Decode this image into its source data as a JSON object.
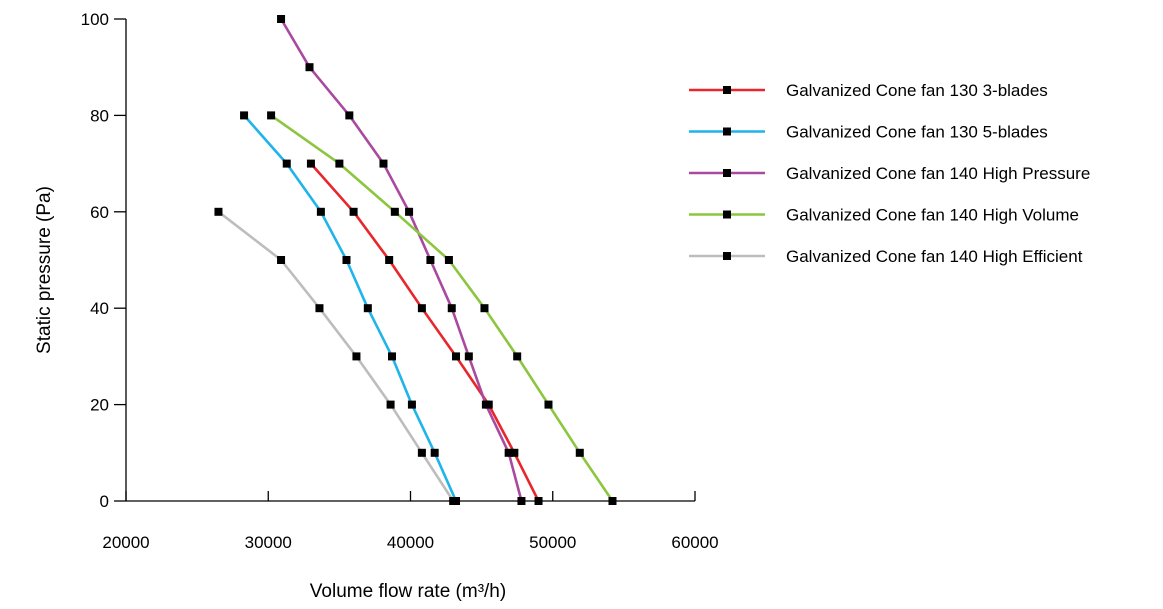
{
  "chart_data": {
    "type": "line",
    "xlabel": "Volume flow rate (m³/h)",
    "ylabel": "Static pressure (Pa)",
    "xlim": [
      20000,
      60000
    ],
    "ylim": [
      0,
      100
    ],
    "x_ticks": [
      20000,
      30000,
      40000,
      50000,
      60000
    ],
    "y_ticks": [
      0,
      20,
      40,
      60,
      80,
      100
    ],
    "grid": false,
    "legend_position": "right",
    "series": [
      {
        "name": "Galvanized Cone fan 130 3-blades",
        "color": "#e8262c",
        "points": [
          [
            33000,
            70
          ],
          [
            36000,
            60
          ],
          [
            38500,
            50
          ],
          [
            40800,
            40
          ],
          [
            43200,
            30
          ],
          [
            45500,
            20
          ],
          [
            47300,
            10
          ],
          [
            49000,
            0
          ]
        ]
      },
      {
        "name": "Galvanized Cone fan 130 5-blades",
        "color": "#1fb4ea",
        "points": [
          [
            28300,
            80
          ],
          [
            31300,
            70
          ],
          [
            33700,
            60
          ],
          [
            35500,
            50
          ],
          [
            37000,
            40
          ],
          [
            38700,
            30
          ],
          [
            40100,
            20
          ],
          [
            41700,
            10
          ],
          [
            43200,
            0
          ]
        ]
      },
      {
        "name": "Galvanized Cone fan 140 High Pressure",
        "color": "#a94aa0",
        "points": [
          [
            30900,
            100
          ],
          [
            32900,
            90
          ],
          [
            35700,
            80
          ],
          [
            38100,
            70
          ],
          [
            39900,
            60
          ],
          [
            41400,
            50
          ],
          [
            42900,
            40
          ],
          [
            44100,
            30
          ],
          [
            45300,
            20
          ],
          [
            46900,
            10
          ],
          [
            47800,
            0
          ]
        ]
      },
      {
        "name": "Galvanized Cone fan 140 High Volume",
        "color": "#8cc63f",
        "points": [
          [
            30200,
            80
          ],
          [
            35000,
            70
          ],
          [
            38900,
            60
          ],
          [
            42700,
            50
          ],
          [
            45200,
            40
          ],
          [
            47500,
            30
          ],
          [
            49700,
            20
          ],
          [
            51900,
            10
          ],
          [
            54200,
            0
          ]
        ]
      },
      {
        "name": "Galvanized Cone fan 140 High Efficient",
        "color": "#bdbdbd",
        "points": [
          [
            26500,
            60
          ],
          [
            30900,
            50
          ],
          [
            33600,
            40
          ],
          [
            36200,
            30
          ],
          [
            38600,
            20
          ],
          [
            40800,
            10
          ],
          [
            43000,
            0
          ]
        ]
      }
    ]
  }
}
